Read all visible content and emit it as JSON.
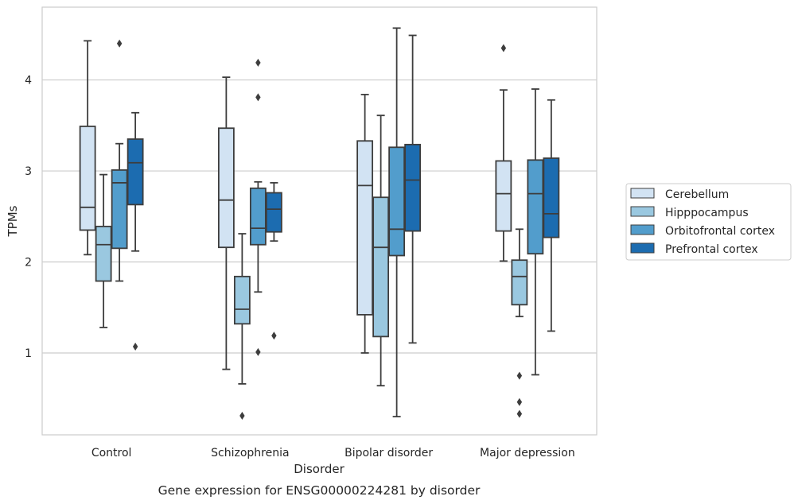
{
  "chart_data": {
    "type": "box",
    "xlabel": "Disorder",
    "ylabel": "TPMs",
    "caption": "Gene expression for ENSG00000224281 by disorder",
    "yticks": [
      1,
      2,
      3,
      4
    ],
    "ylim": [
      0.1,
      4.8
    ],
    "grid": "horizontal",
    "legend_position": "right",
    "categories": [
      "Control",
      "Schizophrenia",
      "Bipolar disorder",
      "Major depression"
    ],
    "series": [
      {
        "name": "Cerebellum",
        "color": "#d2e3f3",
        "boxes": [
          {
            "whisker_low": 2.08,
            "q1": 2.35,
            "median": 2.6,
            "q3": 3.49,
            "whisker_high": 4.43,
            "outliers": []
          },
          {
            "whisker_low": 0.82,
            "q1": 2.16,
            "median": 2.68,
            "q3": 3.47,
            "whisker_high": 4.03,
            "outliers": []
          },
          {
            "whisker_low": 1.0,
            "q1": 1.42,
            "median": 2.84,
            "q3": 3.33,
            "whisker_high": 3.84,
            "outliers": []
          },
          {
            "whisker_low": 2.01,
            "q1": 2.34,
            "median": 2.75,
            "q3": 3.11,
            "whisker_high": 3.89,
            "outliers": [
              4.35
            ]
          }
        ]
      },
      {
        "name": "Hipppocampus",
        "color": "#9ac8e0",
        "boxes": [
          {
            "whisker_low": 1.28,
            "q1": 1.79,
            "median": 2.19,
            "q3": 2.39,
            "whisker_high": 2.96,
            "outliers": []
          },
          {
            "whisker_low": 0.66,
            "q1": 1.32,
            "median": 1.48,
            "q3": 1.84,
            "whisker_high": 2.31,
            "outliers": [
              0.31
            ]
          },
          {
            "whisker_low": 0.64,
            "q1": 1.18,
            "median": 2.16,
            "q3": 2.71,
            "whisker_high": 3.61,
            "outliers": []
          },
          {
            "whisker_low": 1.4,
            "q1": 1.53,
            "median": 1.84,
            "q3": 2.02,
            "whisker_high": 2.36,
            "outliers": [
              0.75,
              0.46,
              0.33
            ]
          }
        ]
      },
      {
        "name": "Orbitofrontal cortex",
        "color": "#529dcc",
        "boxes": [
          {
            "whisker_low": 1.79,
            "q1": 2.15,
            "median": 2.87,
            "q3": 3.01,
            "whisker_high": 3.3,
            "outliers": [
              4.4
            ]
          },
          {
            "whisker_low": 1.67,
            "q1": 2.19,
            "median": 2.37,
            "q3": 2.81,
            "whisker_high": 2.88,
            "outliers": [
              4.19,
              3.81,
              1.01
            ]
          },
          {
            "whisker_low": 0.3,
            "q1": 2.07,
            "median": 2.36,
            "q3": 3.26,
            "whisker_high": 4.57,
            "outliers": []
          },
          {
            "whisker_low": 0.76,
            "q1": 2.09,
            "median": 2.75,
            "q3": 3.12,
            "whisker_high": 3.9,
            "outliers": []
          }
        ]
      },
      {
        "name": "Prefrontal cortex",
        "color": "#1c6cb0",
        "boxes": [
          {
            "whisker_low": 2.12,
            "q1": 2.63,
            "median": 3.09,
            "q3": 3.35,
            "whisker_high": 3.64,
            "outliers": [
              1.07
            ]
          },
          {
            "whisker_low": 2.23,
            "q1": 2.33,
            "median": 2.58,
            "q3": 2.76,
            "whisker_high": 2.87,
            "outliers": [
              1.19
            ]
          },
          {
            "whisker_low": 1.11,
            "q1": 2.34,
            "median": 2.9,
            "q3": 3.29,
            "whisker_high": 4.49,
            "outliers": []
          },
          {
            "whisker_low": 1.24,
            "q1": 2.27,
            "median": 2.53,
            "q3": 3.14,
            "whisker_high": 3.78,
            "outliers": []
          }
        ]
      }
    ]
  }
}
